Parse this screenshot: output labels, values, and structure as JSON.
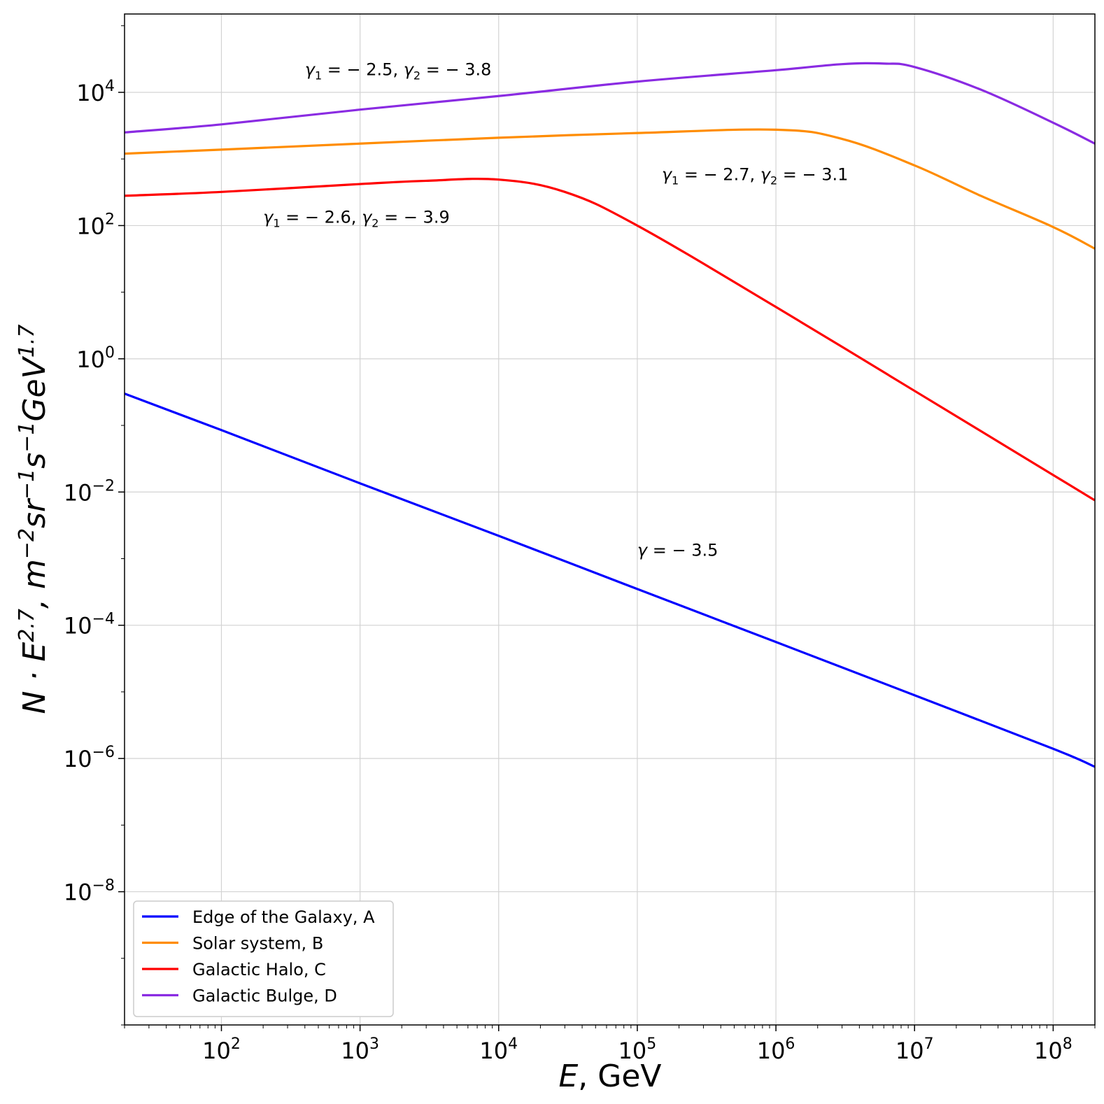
{
  "chart_data": {
    "type": "line",
    "xscale": "log",
    "yscale": "log",
    "xlim": [
      20,
      200000000
    ],
    "ylim": [
      1e-10,
      150000
    ],
    "xlabel": "E, GeV",
    "ylabel": "N · E^2.7, m^-2 sr^-1 s^-1 GeV^1.7",
    "grid": true,
    "legend_position": "lower-left",
    "x_ticks": [
      {
        "base": "10",
        "exp": "2",
        "value": 100
      },
      {
        "base": "10",
        "exp": "3",
        "value": 1000
      },
      {
        "base": "10",
        "exp": "4",
        "value": 10000
      },
      {
        "base": "10",
        "exp": "5",
        "value": 100000
      },
      {
        "base": "10",
        "exp": "6",
        "value": 1000000
      },
      {
        "base": "10",
        "exp": "7",
        "value": 10000000
      },
      {
        "base": "10",
        "exp": "8",
        "value": 100000000
      }
    ],
    "y_ticks": [
      {
        "base": "10",
        "exp": "4",
        "value": 10000
      },
      {
        "base": "10",
        "exp": "2",
        "value": 100
      },
      {
        "base": "10",
        "exp": "0",
        "value": 1
      },
      {
        "base": "10",
        "exp": "−2",
        "value": 0.01
      },
      {
        "base": "10",
        "exp": "−4",
        "value": 0.0001
      },
      {
        "base": "10",
        "exp": "−6",
        "value": 1e-06
      },
      {
        "base": "10",
        "exp": "−8",
        "value": 1e-08
      }
    ],
    "series": [
      {
        "name": "Edge of the Galaxy, A",
        "color": "#0000ff",
        "x": [
          20,
          100,
          1000,
          10000,
          100000,
          1000000,
          10000000,
          100000000,
          200000000
        ],
        "y": [
          0.3,
          0.085,
          0.0135,
          0.0022,
          0.00035,
          5.6e-05,
          8.9e-06,
          1.4e-06,
          7.5e-07
        ]
      },
      {
        "name": "Solar system, B",
        "color": "#ff8c00",
        "x": [
          20,
          100,
          1000,
          10000,
          100000,
          1000000,
          3000000,
          10000000,
          30000000,
          100000000,
          200000000
        ],
        "y": [
          1200,
          1380,
          1700,
          2080,
          2450,
          2750,
          2000,
          800,
          280,
          95,
          45
        ]
      },
      {
        "name": "Galactic Halo, C",
        "color": "#ff0000",
        "x": [
          20,
          100,
          1000,
          3000,
          10000,
          30000,
          100000,
          1000000,
          10000000,
          100000000,
          200000000
        ],
        "y": [
          280,
          320,
          420,
          470,
          490,
          320,
          100,
          6,
          0.33,
          0.018,
          0.0075
        ]
      },
      {
        "name": "Galactic Bulge, D",
        "color": "#8a2be2",
        "x": [
          20,
          100,
          1000,
          10000,
          100000,
          1000000,
          3000000,
          6000000,
          10000000,
          30000000,
          100000000,
          200000000
        ],
        "y": [
          2500,
          3300,
          5500,
          8800,
          14500,
          21500,
          26500,
          27000,
          24000,
          11000,
          3500,
          1700
        ]
      }
    ],
    "annotations": [
      {
        "text_g1": "γ",
        "sub1": "1",
        "text_mid": " = − 2.5, ",
        "text_g2": "γ",
        "sub2": "2",
        "text_end": " = − 3.8",
        "x": 400,
        "y": 18000
      },
      {
        "text_g1": "γ",
        "sub1": "1",
        "text_mid": " = − 2.7, ",
        "text_g2": "γ",
        "sub2": "2",
        "text_end": " = − 3.1",
        "x": 150000,
        "y": 480
      },
      {
        "text_g1": "γ",
        "sub1": "1",
        "text_mid": " = − 2.6, ",
        "text_g2": "γ",
        "sub2": "2",
        "text_end": " = − 3.9",
        "x": 200,
        "y": 110
      },
      {
        "text_g1": "γ",
        "sub1": "",
        "text_mid": " = − 3.5",
        "text_g2": "",
        "sub2": "",
        "text_end": "",
        "x": 100000,
        "y": 0.0011
      }
    ]
  },
  "labels": {
    "xlabel_var": "E",
    "xlabel_rest": ", GeV",
    "ylabel_N": "N · E",
    "ylabel_exp1": "2.7",
    "ylabel_m": ", m",
    "ylabel_exp2": "−2",
    "ylabel_sr": "sr",
    "ylabel_exp3": "−1",
    "ylabel_s": "s",
    "ylabel_exp4": "−1",
    "ylabel_gev": "GeV",
    "ylabel_exp5": "1.7"
  }
}
